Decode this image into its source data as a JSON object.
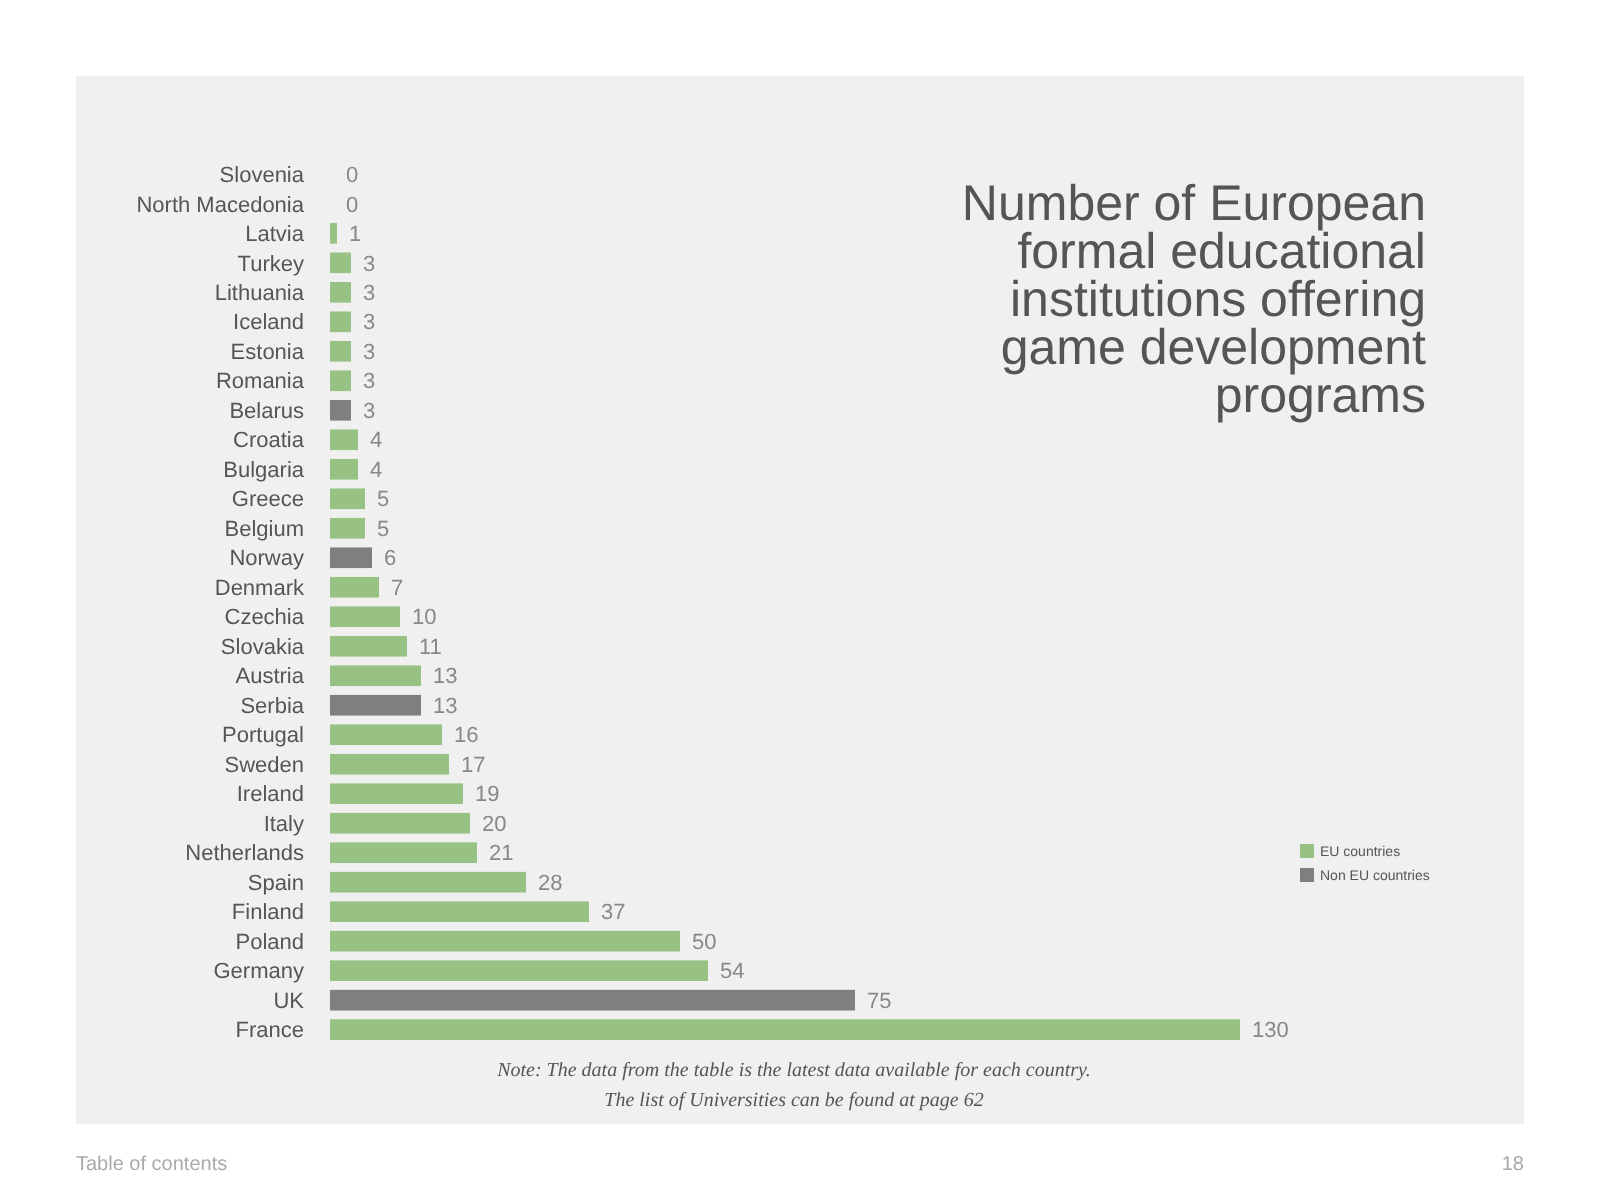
{
  "chart_data": {
    "type": "bar",
    "orientation": "horizontal",
    "data_labels": true,
    "legend": "right",
    "title": "Number of European formal educational institutions offering game development programs",
    "categories": [
      "Slovenia",
      "North Macedonia",
      "Latvia",
      "Turkey",
      "Lithuania",
      "Iceland",
      "Estonia",
      "Romania",
      "Belarus",
      "Croatia",
      "Bulgaria",
      "Greece",
      "Belgium",
      "Norway",
      "Denmark",
      "Czechia",
      "Slovakia",
      "Austria",
      "Serbia",
      "Portugal",
      "Sweden",
      "Ireland",
      "Italy",
      "Netherlands",
      "Spain",
      "Finland",
      "Poland",
      "Germany",
      "UK",
      "France"
    ],
    "series": [
      {
        "name": "EU countries",
        "color": "#97c283",
        "values": [
          0,
          null,
          1,
          3,
          3,
          3,
          3,
          3,
          null,
          4,
          4,
          5,
          5,
          null,
          7,
          10,
          11,
          13,
          null,
          16,
          17,
          19,
          20,
          21,
          28,
          37,
          50,
          54,
          null,
          130
        ]
      },
      {
        "name": "Non EU countries",
        "color": "#7f7f7f",
        "values": [
          null,
          0,
          null,
          null,
          null,
          null,
          null,
          null,
          3,
          null,
          null,
          null,
          null,
          6,
          null,
          null,
          null,
          null,
          13,
          null,
          null,
          null,
          null,
          null,
          null,
          null,
          null,
          null,
          75,
          null
        ]
      }
    ],
    "annotations": [
      "Note: The data from the table is the latest data available for each country.",
      "The list of Universities can be found at page 62",
      "Table of contents",
      "18"
    ]
  }
}
